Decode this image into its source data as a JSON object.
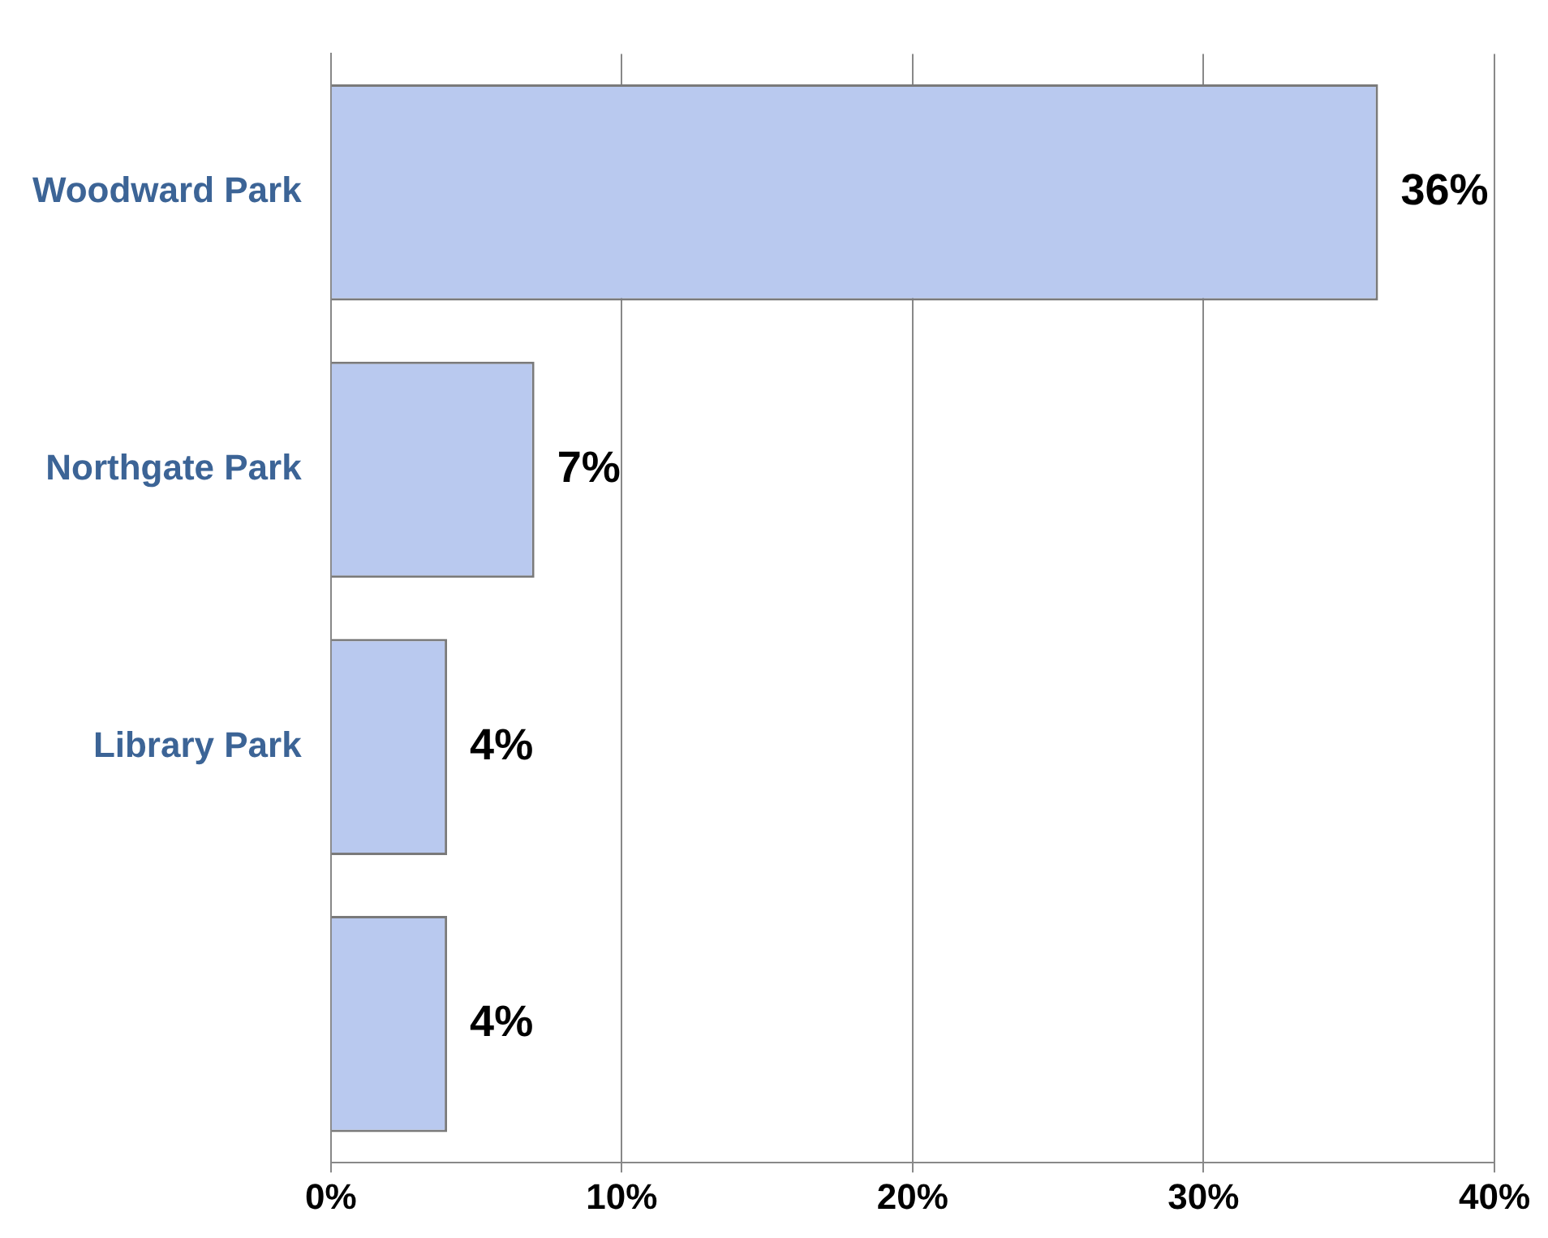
{
  "chart_data": {
    "type": "bar",
    "orientation": "horizontal",
    "categories": [
      "Woodward Park",
      "Northgate Park",
      "Library Park",
      null
    ],
    "values": [
      36,
      7,
      4,
      4
    ],
    "color": "#b9c9ef",
    "value_labels": [
      "36%",
      "7%",
      "4%",
      "4%"
    ],
    "xlim": [
      0,
      40
    ],
    "xticks": [
      {
        "value": 0,
        "label": "0%"
      },
      {
        "value": 10,
        "label": "10%"
      },
      {
        "value": 20,
        "label": "20%"
      },
      {
        "value": 30,
        "label": "30%"
      },
      {
        "value": 40,
        "label": "40%"
      }
    ],
    "grid": "x",
    "legend": false
  }
}
